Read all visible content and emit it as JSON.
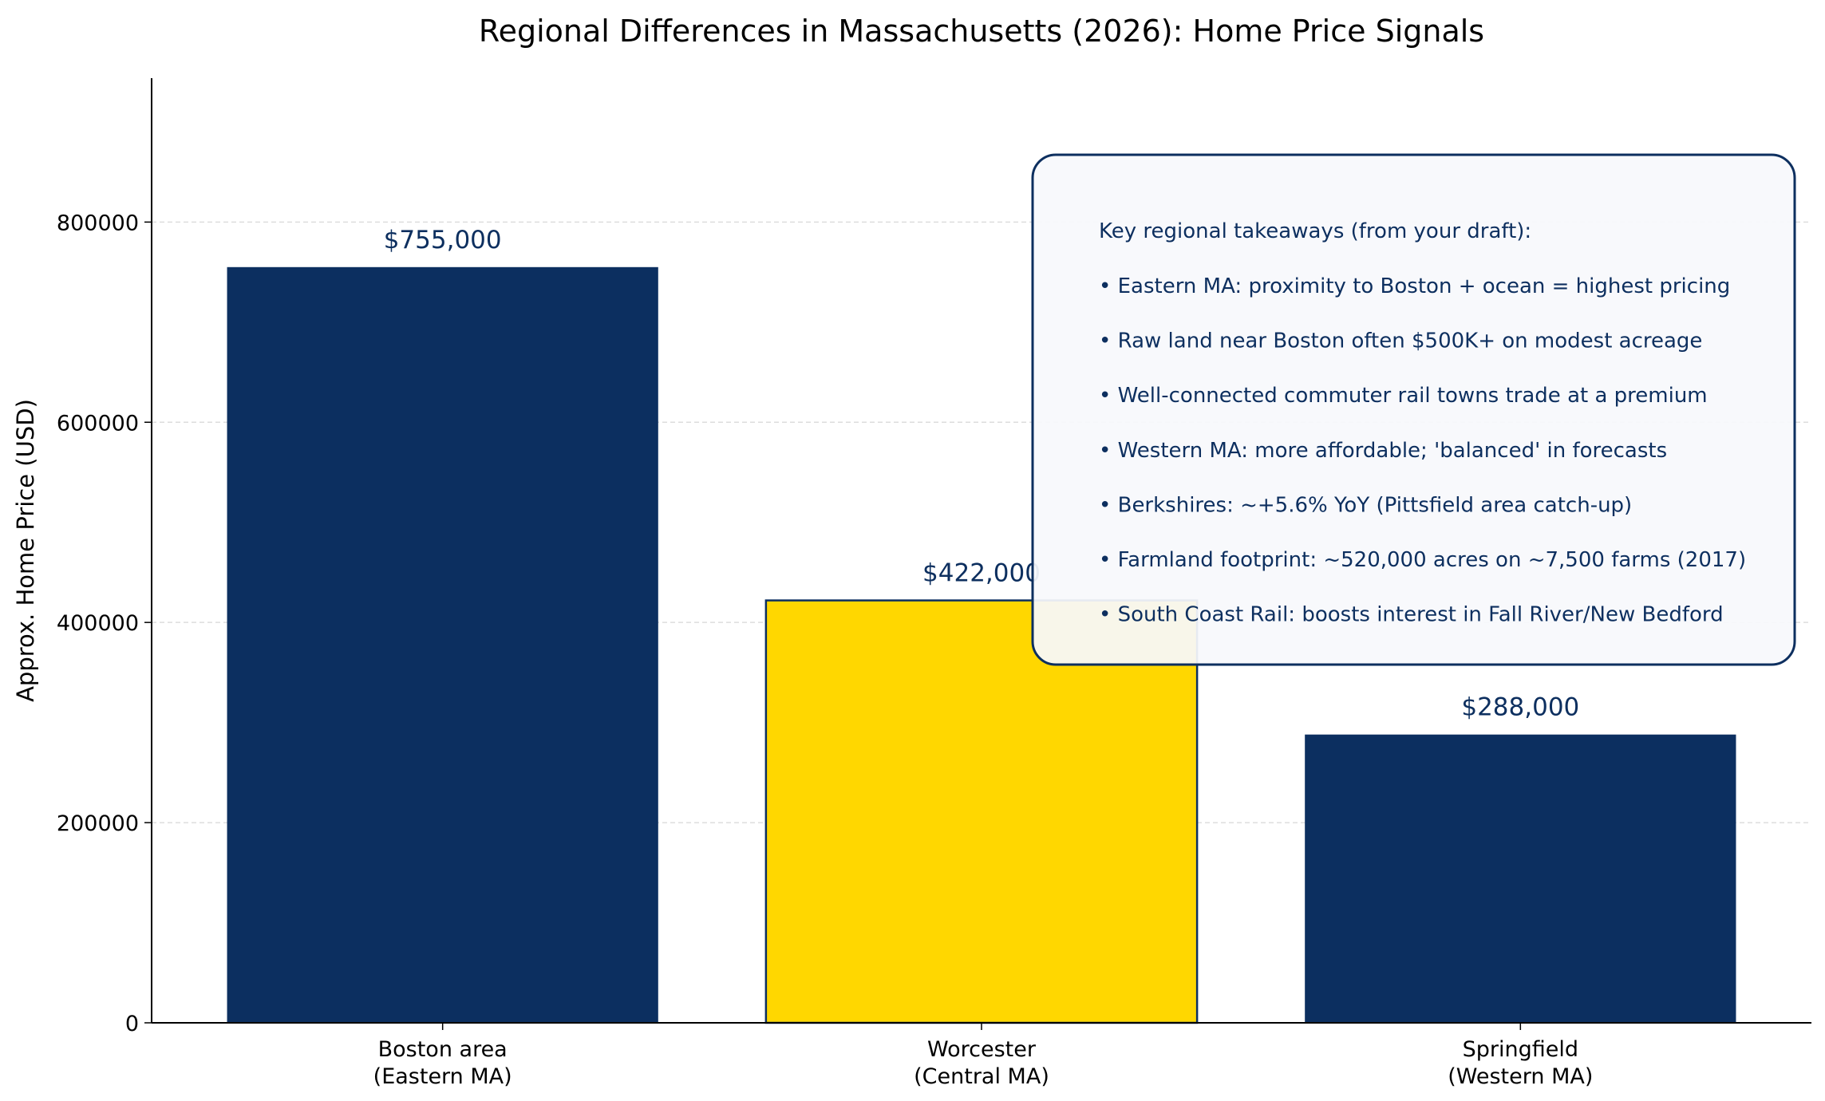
{
  "chart_data": {
    "type": "bar",
    "title": "Regional Differences in Massachusetts (2026): Home Price Signals",
    "xlabel": "",
    "ylabel": "Approx. Home Price (USD)",
    "categories": [
      [
        "Boston area",
        "(Eastern MA)"
      ],
      [
        "Worcester",
        "(Central MA)"
      ],
      [
        "Springfield",
        "(Western MA)"
      ]
    ],
    "values": [
      755000,
      422000,
      288000
    ],
    "data_labels": [
      "$755,000",
      "$422,000",
      "$288,000"
    ],
    "bar_colors": [
      "#0c2f60",
      "#ffd700",
      "#0c2f60"
    ],
    "highlight_index": 1,
    "edge_color": "#0c2f60",
    "label_color": "#0d2f5f",
    "ylim": [
      0,
      943750
    ],
    "yticks": [
      0,
      200000,
      400000,
      600000,
      800000
    ],
    "ytick_labels": [
      "0",
      "200000",
      "400000",
      "600000",
      "800000"
    ],
    "grid": {
      "axis": "y",
      "style": "dashed",
      "on": true
    },
    "annotation": {
      "heading": "Key regional takeaways (from your draft):",
      "bullets": [
        "• Eastern MA: proximity to Boston + ocean = highest pricing",
        "• Raw land near Boston often $500K+ on modest acreage",
        "• Well-connected commuter rail towns trade at a premium",
        "• Western MA: more affordable; 'balanced' in forecasts",
        "• Berkshires: ~+5.6% YoY (Pittsfield area catch-up)",
        "• Farmland footprint: ~520,000 acres on ~7,500 farms (2017)",
        "• South Coast Rail: boosts interest in Fall River/New Bedford"
      ],
      "placement": "top-right",
      "background": "#f7f9fc",
      "border_color": "#0d2f5f"
    }
  }
}
